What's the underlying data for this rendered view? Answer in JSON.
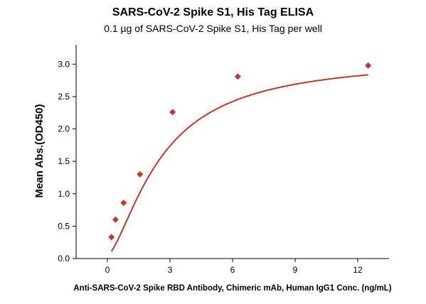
{
  "chart_data": {
    "type": "scatter",
    "title": "SARS-CoV-2 Spike S1, His Tag ELISA",
    "subtitle": "0.1 µg of SARS-CoV-2 Spike S1, His Tag per well",
    "xlabel": "Anti-SARS-CoV-2 Spike RBD Antibody, Chimeric mAb, Human IgG1 Conc. (ng/mL)",
    "ylabel": "Mean Abs.(OD450)",
    "xlim": [
      -1.5,
      13.5
    ],
    "ylim": [
      0,
      3.3
    ],
    "xticks": [
      0,
      3,
      6,
      9,
      12
    ],
    "yticks": [
      0.0,
      0.5,
      1.0,
      1.5,
      2.0,
      2.5,
      3.0
    ],
    "xtick_labels": [
      "0",
      "3",
      "6",
      "9",
      "12"
    ],
    "ytick_labels": [
      "0.0",
      "0.5",
      "1.0",
      "1.5",
      "2.0",
      "2.5",
      "3.0"
    ],
    "grid": false,
    "legend": "none",
    "marker": "diamond",
    "color": "#c0392b",
    "fit": "four-parameter logistic curve",
    "series": [
      {
        "x": [
          0.195,
          0.39,
          0.78,
          1.56,
          3.125,
          6.25,
          12.5
        ],
        "y": [
          0.33,
          0.6,
          0.86,
          1.3,
          2.26,
          2.81,
          2.98
        ]
      }
    ]
  }
}
